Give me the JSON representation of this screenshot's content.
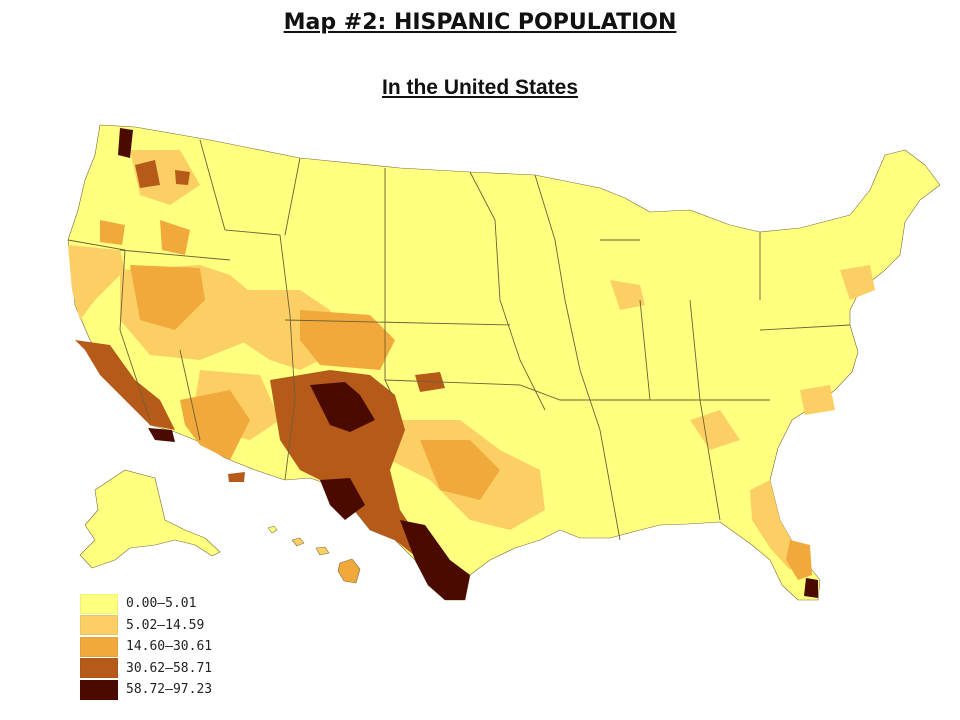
{
  "title": "Map #2: HISPANIC POPULATION",
  "subtitle": "In the United States",
  "legend": [
    {
      "label": "0.00–5.01",
      "color": "#ffff80"
    },
    {
      "label": "5.02–14.59",
      "color": "#fbcf63"
    },
    {
      "label": "14.60–30.61",
      "color": "#f2a93b"
    },
    {
      "label": "30.62–58.71",
      "color": "#b65a1a"
    },
    {
      "label": "58.72–97.23",
      "color": "#4a0a00"
    }
  ]
}
